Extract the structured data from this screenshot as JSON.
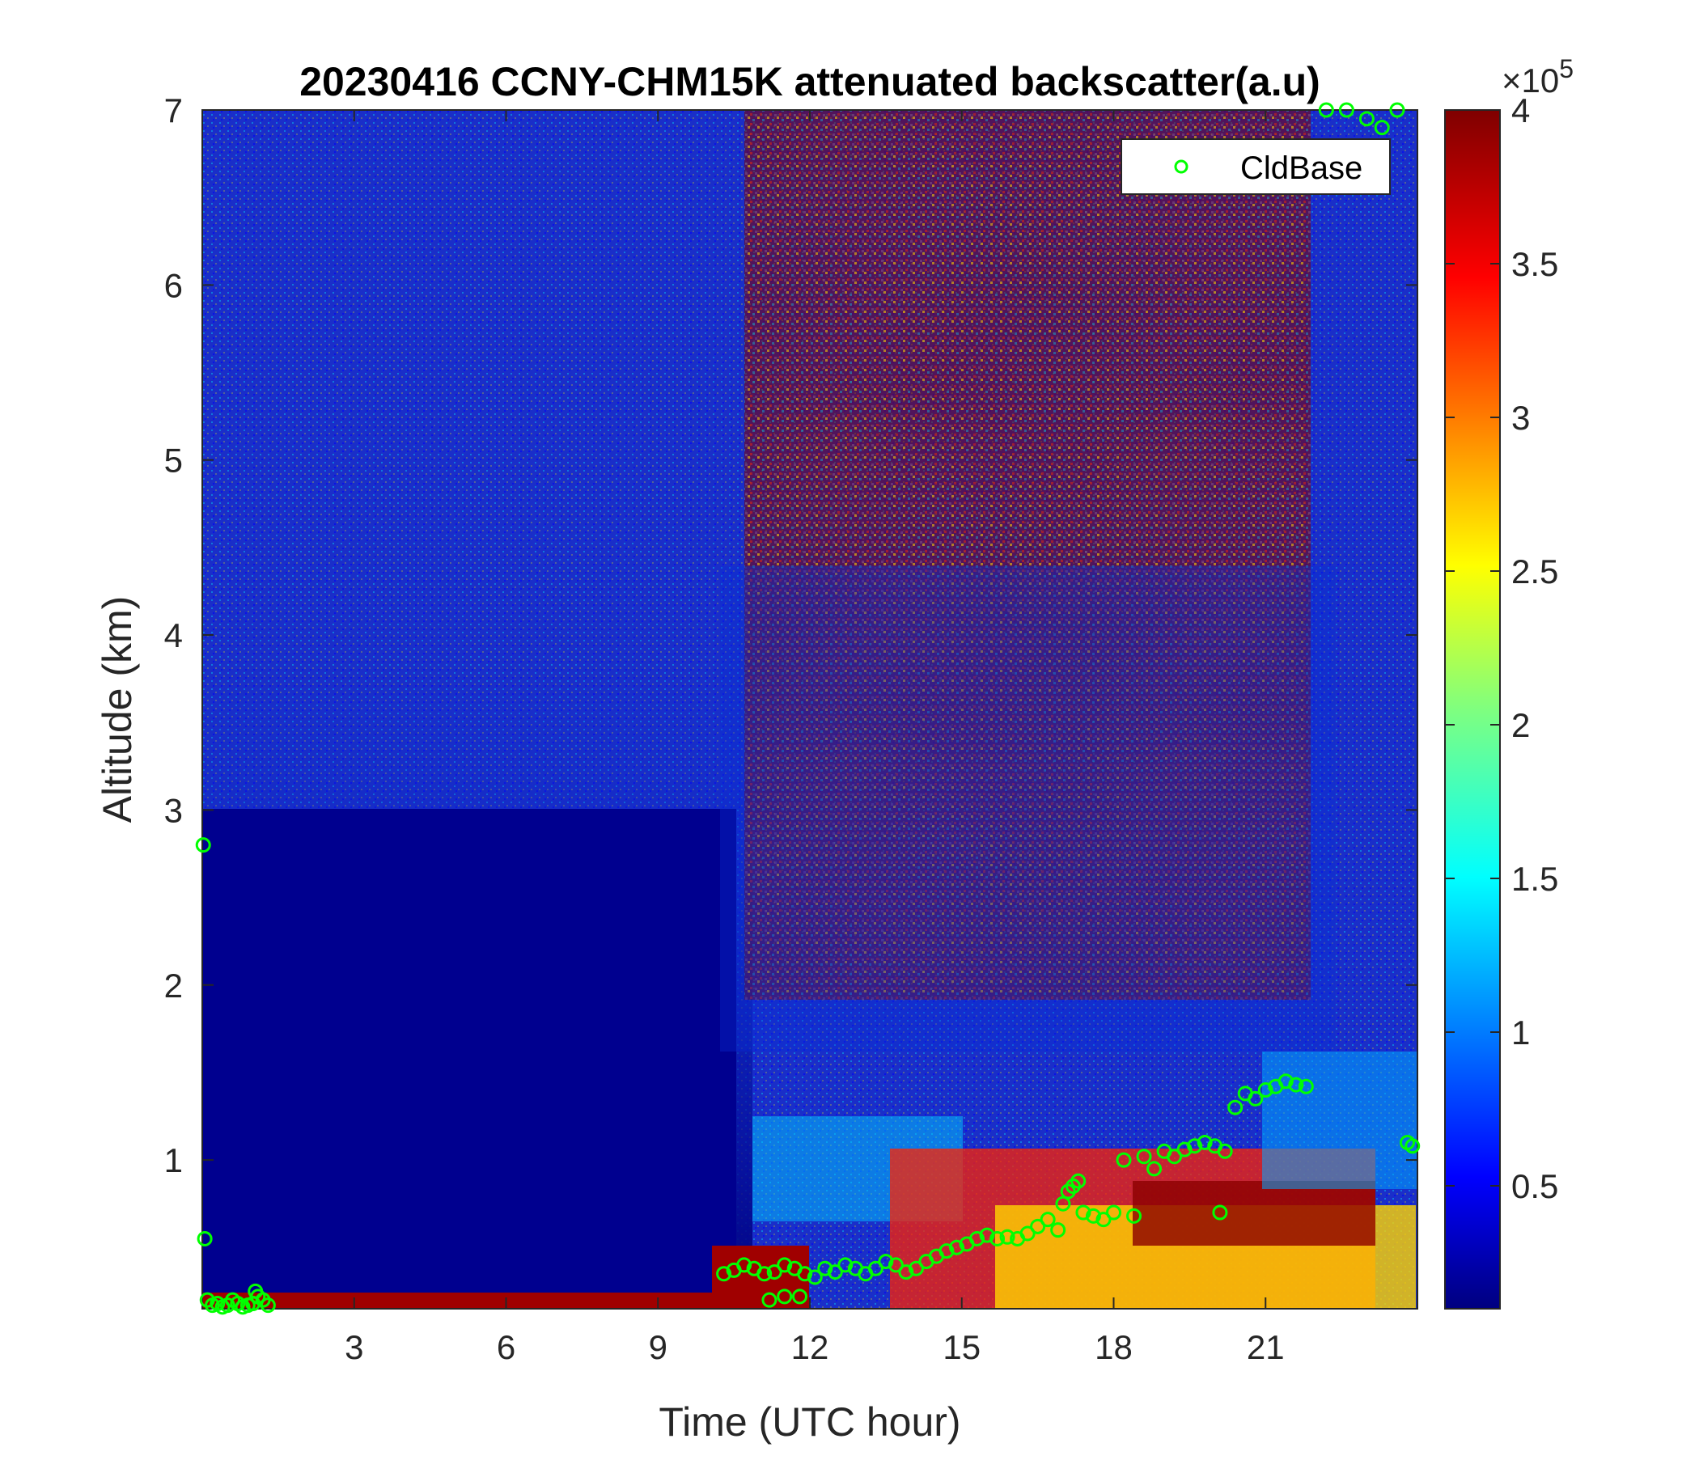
{
  "chart_data": {
    "type": "heatmap",
    "title": "20230416 CCNY-CHM15K attenuated backscatter(a.u)",
    "xlabel": "Time (UTC hour)",
    "ylabel": "Altitude (km)",
    "xlim": [
      0,
      24
    ],
    "ylim": [
      0.15,
      7
    ],
    "xticks": [
      3,
      6,
      9,
      12,
      15,
      18,
      21
    ],
    "yticks": [
      1,
      2,
      3,
      4,
      5,
      6,
      7
    ],
    "colormap": "jet",
    "colorbar": {
      "range": [
        0.1,
        4.0
      ],
      "ticks": [
        0.5,
        1,
        1.5,
        2,
        2.5,
        3,
        3.5,
        4
      ],
      "tick_labels": [
        "0.5",
        "1",
        "1.5",
        "2",
        "2.5",
        "3",
        "3.5",
        "4"
      ],
      "exponent_prefix": "×10",
      "exponent": "5"
    },
    "legend": {
      "placement": "top-right",
      "entries": [
        "CldBase"
      ]
    },
    "series": [
      {
        "name": "CldBase",
        "marker": "circle-open",
        "color": "#00ff00",
        "x": [
          0.02,
          0.05,
          0.1,
          0.2,
          0.3,
          0.4,
          0.5,
          0.6,
          0.7,
          0.8,
          0.9,
          1.0,
          1.05,
          1.1,
          1.2,
          1.3,
          10.3,
          10.5,
          10.7,
          10.9,
          11.1,
          11.3,
          11.5,
          11.7,
          11.9,
          12.1,
          12.3,
          12.5,
          12.7,
          12.9,
          13.1,
          13.3,
          13.5,
          13.7,
          13.9,
          14.1,
          14.3,
          14.5,
          14.7,
          14.9,
          15.1,
          15.3,
          15.5,
          15.7,
          15.9,
          16.1,
          16.3,
          16.5,
          16.7,
          16.9,
          17.0,
          17.1,
          17.2,
          17.3,
          17.4,
          17.6,
          17.8,
          18.0,
          18.2,
          18.4,
          18.6,
          18.8,
          19.0,
          19.2,
          19.4,
          19.6,
          19.8,
          20.0,
          20.2,
          20.4,
          20.6,
          20.8,
          21.0,
          21.2,
          21.4,
          21.6,
          21.8,
          20.1,
          22.2,
          22.6,
          23.0,
          23.3,
          23.6,
          23.8,
          23.9,
          11.2,
          11.5,
          11.8
        ],
        "y": [
          2.8,
          0.55,
          0.2,
          0.17,
          0.18,
          0.16,
          0.17,
          0.2,
          0.18,
          0.16,
          0.17,
          0.18,
          0.25,
          0.22,
          0.2,
          0.17,
          0.35,
          0.37,
          0.4,
          0.38,
          0.35,
          0.36,
          0.4,
          0.38,
          0.35,
          0.33,
          0.38,
          0.36,
          0.4,
          0.38,
          0.35,
          0.38,
          0.42,
          0.4,
          0.36,
          0.38,
          0.42,
          0.45,
          0.48,
          0.5,
          0.52,
          0.55,
          0.57,
          0.55,
          0.56,
          0.55,
          0.58,
          0.62,
          0.66,
          0.6,
          0.75,
          0.82,
          0.85,
          0.88,
          0.7,
          0.68,
          0.66,
          0.7,
          1.0,
          0.68,
          1.02,
          0.95,
          1.05,
          1.02,
          1.06,
          1.08,
          1.1,
          1.08,
          1.05,
          1.3,
          1.38,
          1.35,
          1.4,
          1.42,
          1.45,
          1.43,
          1.42,
          0.7,
          7.0,
          7.0,
          6.95,
          6.9,
          7.0,
          1.1,
          1.08,
          0.2,
          0.22,
          0.22
        ]
      }
    ]
  }
}
